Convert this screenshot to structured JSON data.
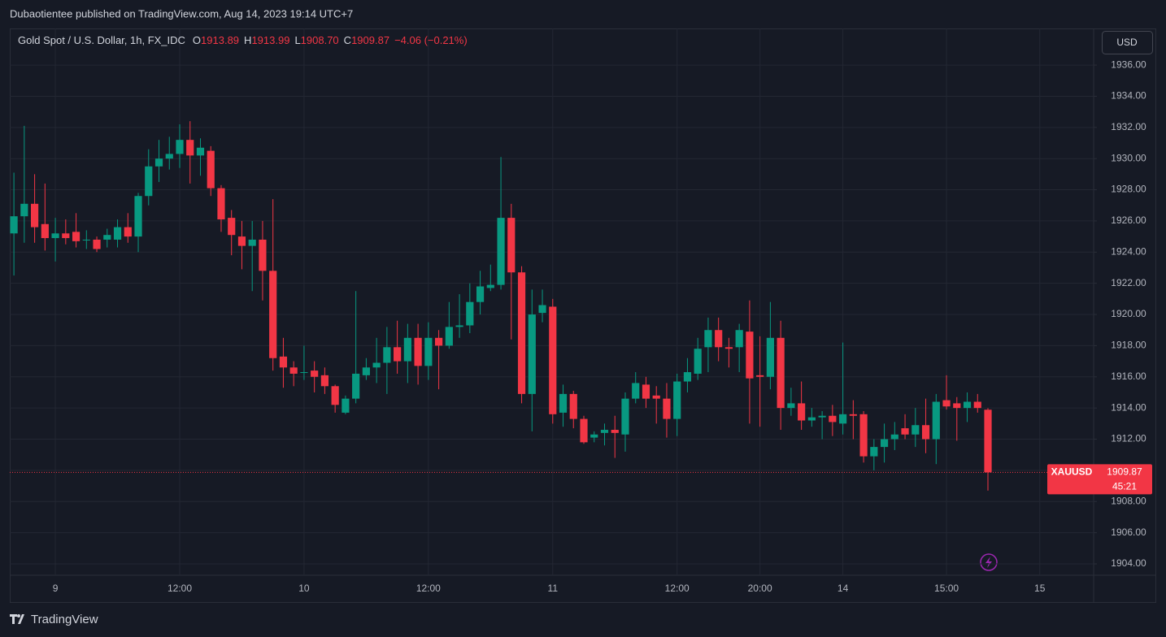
{
  "header": {
    "text": "Dubaotientee published on TradingView.com, Aug 14, 2023 19:14 UTC+7"
  },
  "footer": {
    "brand": "TradingView"
  },
  "chart_data": {
    "type": "candlestick",
    "currency": "USD",
    "legend": {
      "symbol": "Gold Spot / U.S. Dollar, 1h, FX_IDC",
      "ohlc": [
        {
          "label": "O",
          "value": "1913.89"
        },
        {
          "label": "H",
          "value": "1913.99"
        },
        {
          "label": "L",
          "value": "1908.70"
        },
        {
          "label": "C",
          "value": "1909.87"
        }
      ],
      "change": "−4.06 (−0.21%)"
    },
    "last_price": {
      "symbol": "XAUUSD",
      "price": "1909.87",
      "countdown": "45:21"
    },
    "up_color": "#089981",
    "down_color": "#f23645",
    "grid": true,
    "xlim": [
      -0.4,
      104.2
    ],
    "ylim": [
      1903.27,
      1938.35
    ],
    "xticks": [
      {
        "value": 4,
        "label": "9"
      },
      {
        "value": 16,
        "label": "12:00"
      },
      {
        "value": 28,
        "label": "10"
      },
      {
        "value": 40,
        "label": "12:00"
      },
      {
        "value": 52,
        "label": "11"
      },
      {
        "value": 64,
        "label": "12:00"
      },
      {
        "value": 72,
        "label": "20:00"
      },
      {
        "value": 80,
        "label": "14"
      },
      {
        "value": 90,
        "label": "15:00"
      },
      {
        "value": 99,
        "label": "15"
      }
    ],
    "yticks": [
      {
        "value": 1904,
        "label": "1904.00"
      },
      {
        "value": 1906,
        "label": "1906.00"
      },
      {
        "value": 1908,
        "label": "1908.00"
      },
      {
        "value": 1910,
        "label": "1910.00"
      },
      {
        "value": 1912,
        "label": "1912.00"
      },
      {
        "value": 1914,
        "label": "1914.00"
      },
      {
        "value": 1916,
        "label": "1916.00"
      },
      {
        "value": 1918,
        "label": "1918.00"
      },
      {
        "value": 1920,
        "label": "1920.00"
      },
      {
        "value": 1922,
        "label": "1922.00"
      },
      {
        "value": 1924,
        "label": "1924.00"
      },
      {
        "value": 1926,
        "label": "1926.00"
      },
      {
        "value": 1928,
        "label": "1928.00"
      },
      {
        "value": 1930,
        "label": "1930.00"
      },
      {
        "value": 1932,
        "label": "1932.00"
      },
      {
        "value": 1934,
        "label": "1934.00"
      },
      {
        "value": 1936,
        "label": "1936.00"
      }
    ],
    "x": [
      0,
      1,
      2,
      3,
      4,
      5,
      6,
      7,
      8,
      9,
      10,
      11,
      12,
      13,
      14,
      15,
      16,
      17,
      18,
      19,
      20,
      21,
      22,
      23,
      24,
      25,
      26,
      27,
      28,
      29,
      30,
      31,
      32,
      33,
      34,
      35,
      36,
      37,
      38,
      39,
      40,
      41,
      42,
      43,
      44,
      45,
      46,
      47,
      48,
      49,
      50,
      51,
      52,
      53,
      54,
      55,
      56,
      57,
      58,
      59,
      60,
      61,
      62,
      63,
      64,
      65,
      66,
      67,
      68,
      69,
      70,
      71,
      72,
      73,
      74,
      75,
      76,
      77,
      78,
      79,
      80,
      81,
      82,
      83,
      84,
      85,
      86,
      87,
      88,
      89,
      90,
      91,
      92,
      93,
      94
    ],
    "open": [
      1925.2,
      1926.3,
      1927.1,
      1925.8,
      1924.9,
      1925.2,
      1925.3,
      1924.8,
      1924.8,
      1924.8,
      1924.8,
      1925.6,
      1925.0,
      1927.6,
      1929.5,
      1930.0,
      1930.3,
      1931.2,
      1930.2,
      1930.5,
      1928.1,
      1926.2,
      1925.0,
      1924.4,
      1924.8,
      1922.8,
      1917.3,
      1916.6,
      1916.3,
      1916.4,
      1916.1,
      1915.4,
      1913.7,
      1914.6,
      1916.1,
      1916.6,
      1916.9,
      1917.9,
      1917.0,
      1918.5,
      1916.7,
      1918.5,
      1918.0,
      1919.2,
      1919.3,
      1920.8,
      1921.7,
      1921.9,
      1926.2,
      1922.7,
      1914.9,
      1920.1,
      1920.5,
      1913.7,
      1914.9,
      1913.3,
      1912.1,
      1912.4,
      1912.6,
      1912.3,
      1914.6,
      1915.5,
      1914.8,
      1914.6,
      1913.3,
      1915.7,
      1916.2,
      1917.9,
      1919.0,
      1917.9,
      1917.9,
      1918.9,
      1916.1,
      1916.0,
      1918.5,
      1914.0,
      1914.3,
      1913.2,
      1913.4,
      1913.5,
      1913.0,
      1913.6,
      1913.6,
      1910.9,
      1911.5,
      1912.0,
      1912.7,
      1912.3,
      1912.9,
      1912.0,
      1914.5,
      1914.3,
      1914.0,
      1914.4,
      1913.89
    ],
    "high": [
      1929.1,
      1932.1,
      1929.0,
      1928.4,
      1926.2,
      1926.1,
      1926.5,
      1925.4,
      1925.0,
      1925.5,
      1926.1,
      1926.5,
      1927.8,
      1930.6,
      1931.2,
      1931.4,
      1932.2,
      1932.4,
      1931.3,
      1930.8,
      1928.3,
      1926.7,
      1926.0,
      1926.0,
      1926.0,
      1927.4,
      1918.5,
      1917.0,
      1918.0,
      1917.0,
      1916.6,
      1915.5,
      1914.8,
      1921.5,
      1917.2,
      1918.5,
      1919.2,
      1919.6,
      1919.4,
      1919.4,
      1919.5,
      1919.0,
      1920.8,
      1921.3,
      1922.0,
      1922.8,
      1923.2,
      1930.1,
      1927.1,
      1923.1,
      1921.6,
      1921.6,
      1921.0,
      1915.5,
      1915.1,
      1913.5,
      1912.5,
      1913.0,
      1913.5,
      1915.0,
      1916.3,
      1916.0,
      1915.4,
      1915.6,
      1916.2,
      1917.2,
      1918.5,
      1919.8,
      1919.8,
      1918.5,
      1919.4,
      1920.9,
      1918.6,
      1920.8,
      1919.6,
      1915.3,
      1915.7,
      1914.0,
      1913.8,
      1914.2,
      1918.2,
      1914.5,
      1913.8,
      1912.0,
      1913.0,
      1913.1,
      1913.6,
      1914.0,
      1914.6,
      1914.9,
      1916.1,
      1914.7,
      1915.0,
      1914.9,
      1913.99
    ],
    "low": [
      1922.5,
      1924.6,
      1924.6,
      1924.1,
      1923.4,
      1924.5,
      1924.3,
      1924.2,
      1924.0,
      1924.3,
      1924.3,
      1924.6,
      1924.0,
      1927.0,
      1928.5,
      1929.3,
      1929.4,
      1928.4,
      1928.9,
      1927.6,
      1925.3,
      1923.8,
      1922.9,
      1921.5,
      1920.9,
      1916.4,
      1915.3,
      1915.4,
      1915.8,
      1915.0,
      1914.9,
      1913.7,
      1913.6,
      1914.3,
      1915.8,
      1915.6,
      1914.9,
      1916.2,
      1915.6,
      1915.5,
      1915.8,
      1915.2,
      1917.8,
      1918.5,
      1918.8,
      1920.0,
      1921.5,
      1921.6,
      1918.4,
      1914.3,
      1912.5,
      1919.5,
      1913.0,
      1912.8,
      1912.7,
      1911.7,
      1911.8,
      1911.6,
      1910.8,
      1911.2,
      1914.3,
      1914.0,
      1913.0,
      1912.1,
      1912.2,
      1915.0,
      1915.8,
      1916.3,
      1917.0,
      1916.6,
      1916.3,
      1913.0,
      1912.8,
      1915.2,
      1912.6,
      1913.5,
      1912.6,
      1912.8,
      1912.0,
      1912.2,
      1912.3,
      1912.0,
      1910.5,
      1910.0,
      1910.5,
      1911.3,
      1912.0,
      1911.5,
      1911.1,
      1910.4,
      1913.9,
      1911.9,
      1913.1,
      1913.7,
      1908.7
    ],
    "close": [
      1926.3,
      1927.1,
      1925.6,
      1924.9,
      1925.2,
      1924.9,
      1924.7,
      1924.8,
      1924.2,
      1925.1,
      1925.6,
      1925.0,
      1927.6,
      1929.5,
      1930.0,
      1930.3,
      1931.2,
      1930.2,
      1930.7,
      1928.1,
      1926.1,
      1925.1,
      1924.4,
      1924.8,
      1922.8,
      1917.2,
      1916.6,
      1916.2,
      1916.3,
      1916.0,
      1915.4,
      1914.2,
      1914.6,
      1916.2,
      1916.6,
      1916.9,
      1917.9,
      1917.0,
      1918.5,
      1916.7,
      1918.5,
      1918.0,
      1919.2,
      1919.3,
      1920.8,
      1921.8,
      1921.9,
      1926.2,
      1922.7,
      1914.9,
      1920.0,
      1920.6,
      1913.6,
      1914.9,
      1913.3,
      1911.8,
      1912.3,
      1912.6,
      1912.4,
      1914.6,
      1915.6,
      1914.6,
      1914.6,
      1913.3,
      1915.7,
      1916.3,
      1917.8,
      1919.0,
      1917.9,
      1917.8,
      1919.0,
      1915.9,
      1916.0,
      1918.5,
      1914.0,
      1914.3,
      1913.2,
      1913.4,
      1913.5,
      1913.1,
      1913.6,
      1913.5,
      1910.9,
      1911.5,
      1912.0,
      1912.3,
      1912.3,
      1912.9,
      1912.0,
      1914.4,
      1914.1,
      1914.0,
      1914.4,
      1914.0,
      1909.87
    ]
  }
}
